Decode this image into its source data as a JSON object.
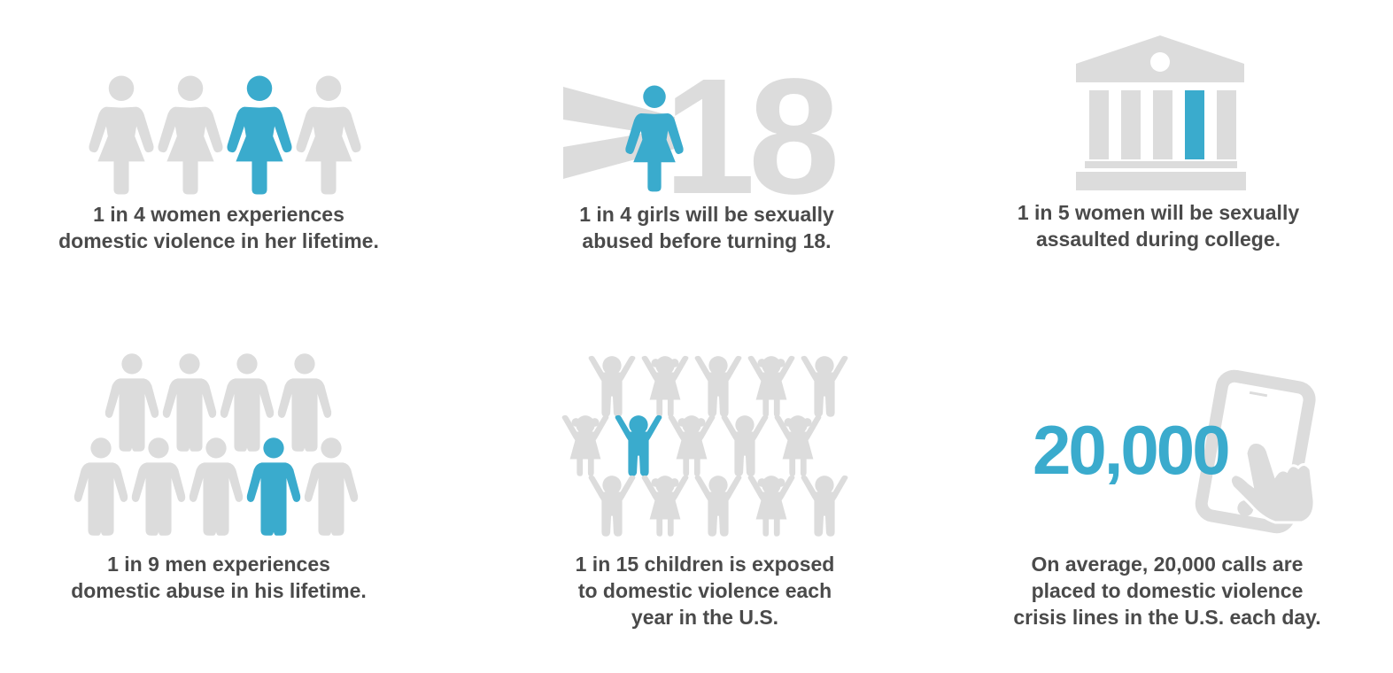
{
  "colors": {
    "highlight": "#3aabcd",
    "muted": "#dcdcdc",
    "text": "#4a4a4a"
  },
  "panels": [
    {
      "id": "women",
      "icon": "woman-figure-icon",
      "count": 4,
      "highlight_index": 2,
      "caption": [
        "1 in 4 women experiences",
        "domestic violence in her lifetime."
      ]
    },
    {
      "id": "girls",
      "icon": "girl-under-18-icon",
      "big_text": ">18",
      "caption": [
        "1 in 4 girls will be sexually",
        "abused before turning 18."
      ]
    },
    {
      "id": "college",
      "icon": "college-building-icon",
      "columns": 5,
      "highlight_index": 3,
      "caption": [
        "1 in 5 women will be sexually",
        "assaulted during college."
      ]
    },
    {
      "id": "men",
      "icon": "man-figure-icon",
      "count": 9,
      "highlight_index": 7,
      "caption": [
        "1 in 9 men experiences",
        "domestic abuse in his lifetime."
      ]
    },
    {
      "id": "children",
      "icon": "child-figure-icon",
      "count": 15,
      "highlight_index": 6,
      "caption": [
        "1 in 15 children is exposed",
        "to domestic violence each",
        "year in the U.S."
      ]
    },
    {
      "id": "calls",
      "icon": "phone-tap-icon",
      "big_number": "20,000",
      "caption": [
        "On average, 20,000 calls are",
        "placed to domestic violence",
        "crisis lines in the U.S. each day."
      ]
    }
  ]
}
